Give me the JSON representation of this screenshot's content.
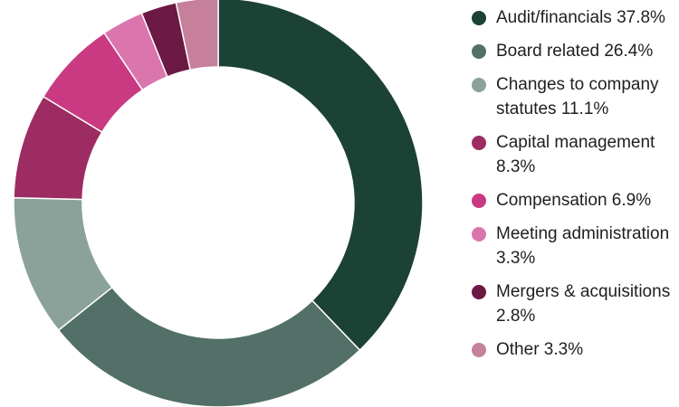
{
  "chart_data": {
    "type": "pie",
    "variant": "donut",
    "title": "",
    "categories": [
      "Audit/financials",
      "Board related",
      "Changes to company statutes",
      "Capital management",
      "Compensation",
      "Meeting administration",
      "Mergers & acquisitions",
      "Other"
    ],
    "values": [
      37.8,
      26.4,
      11.1,
      8.3,
      6.9,
      3.3,
      2.8,
      3.3
    ],
    "colors": [
      "#1b4235",
      "#527067",
      "#8ba29a",
      "#9c2c62",
      "#c93a82",
      "#da76ad",
      "#6b1a44",
      "#c6809c"
    ],
    "legend": {
      "position": "right",
      "items": [
        {
          "label": "Audit/financials 37.8%"
        },
        {
          "label": "Board related 26.4%"
        },
        {
          "label": "Changes to company statutes 11.1%"
        },
        {
          "label": "Capital management 8.3%"
        },
        {
          "label": "Compensation 6.9%"
        },
        {
          "label": "Meeting administration 3.3%"
        },
        {
          "label": "Mergers & acquisitions 2.8%"
        },
        {
          "label": "Other 3.3%"
        }
      ]
    }
  }
}
